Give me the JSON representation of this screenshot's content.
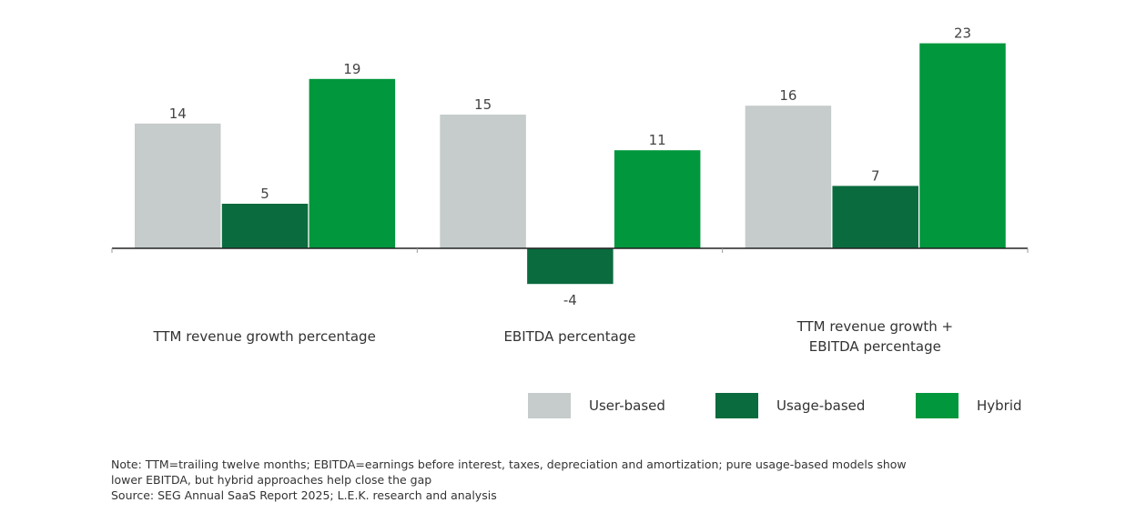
{
  "chart_data": {
    "type": "bar",
    "title": "",
    "xlabel": "",
    "ylabel": "",
    "categories": [
      "TTM revenue growth percentage",
      "EBITDA percentage",
      "TTM revenue growth + EBITDA percentage"
    ],
    "category_lines": [
      [
        "TTM revenue growth percentage"
      ],
      [
        "EBITDA percentage"
      ],
      [
        "TTM revenue growth +",
        "EBITDA percentage"
      ]
    ],
    "series": [
      {
        "name": "User-based",
        "values": [
          14,
          15,
          16
        ],
        "color": "#c5cccb"
      },
      {
        "name": "Usage-based",
        "values": [
          5,
          -4,
          7
        ],
        "color": "#0a6b3e"
      },
      {
        "name": "Hybrid",
        "values": [
          19,
          11,
          23
        ],
        "color": "#00973d"
      }
    ],
    "data_labels": true,
    "grid": false,
    "legend_position": "bottom-right"
  },
  "notes": {
    "line1": "Note: TTM=trailing twelve months; EBITDA=earnings before interest, taxes, depreciation and amortization; pure usage-based models show",
    "line2": "lower EBITDA, but hybrid approaches help close the gap",
    "source": "Source: SEG Annual SaaS Report 2025; L.E.K. research and analysis"
  }
}
